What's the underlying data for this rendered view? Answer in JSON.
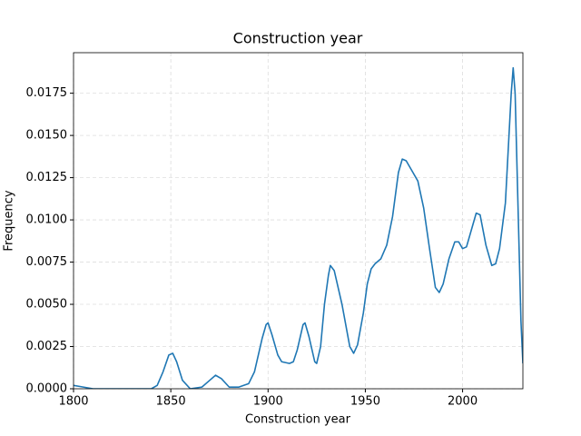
{
  "chart_data": {
    "type": "line",
    "title": "Construction year",
    "x_label": "Construction year",
    "y_label": "Frequency",
    "x": [
      1800,
      1805,
      1810,
      1840,
      1843,
      1846,
      1849,
      1851,
      1853,
      1856,
      1860,
      1866,
      1870,
      1873,
      1876,
      1880,
      1885,
      1890,
      1893,
      1897,
      1899,
      1900,
      1902,
      1905,
      1907,
      1911,
      1913,
      1915,
      1918,
      1919,
      1921,
      1924,
      1925,
      1927,
      1929,
      1931,
      1932,
      1934,
      1938,
      1942,
      1944,
      1946,
      1949,
      1951,
      1953,
      1955,
      1958,
      1961,
      1964,
      1967,
      1969,
      1971,
      1974,
      1977,
      1980,
      1983,
      1986,
      1988,
      1990,
      1993,
      1996,
      1998,
      2000,
      2002,
      2005,
      2007,
      2009,
      2012,
      2015,
      2017,
      2019,
      2022,
      2025,
      2026,
      2027,
      2028,
      2029,
      2030,
      2031
    ],
    "series": [
      {
        "name": "Construction year",
        "color": "#1f77b4",
        "values": [
          0.0002,
          0.0001,
          0,
          0,
          0.0002,
          0.001,
          0.002,
          0.0021,
          0.0016,
          0.0005,
          0,
          0.0001,
          0.0005,
          0.0008,
          0.0006,
          0.0001,
          0.0001,
          0.0003,
          0.001,
          0.003,
          0.0038,
          0.0039,
          0.0032,
          0.002,
          0.0016,
          0.0015,
          0.0016,
          0.0023,
          0.0038,
          0.0039,
          0.0031,
          0.0016,
          0.0015,
          0.0025,
          0.005,
          0.0067,
          0.0073,
          0.007,
          0.005,
          0.0025,
          0.0021,
          0.0026,
          0.0045,
          0.0062,
          0.0071,
          0.0074,
          0.0077,
          0.0085,
          0.0102,
          0.0128,
          0.0136,
          0.0135,
          0.0129,
          0.0123,
          0.0107,
          0.0083,
          0.006,
          0.0057,
          0.0062,
          0.0077,
          0.0087,
          0.0087,
          0.0083,
          0.0084,
          0.0096,
          0.0104,
          0.0103,
          0.0085,
          0.0073,
          0.0074,
          0.0083,
          0.011,
          0.0175,
          0.019,
          0.0175,
          0.013,
          0.0085,
          0.004,
          0.0015
        ]
      }
    ],
    "xlim": [
      1800,
      2031
    ],
    "ylim": [
      0,
      0.0199
    ],
    "xticks": [
      1800,
      1850,
      1900,
      1950,
      2000
    ],
    "yticks": [
      {
        "value": 0,
        "label": "0.0000"
      },
      {
        "value": 0.0025,
        "label": "0.0025"
      },
      {
        "value": 0.005,
        "label": "0.0050"
      },
      {
        "value": 0.0075,
        "label": "0.0075"
      },
      {
        "value": 0.01,
        "label": "0.0100"
      },
      {
        "value": 0.0125,
        "label": "0.0125"
      },
      {
        "value": 0.015,
        "label": "0.0150"
      },
      {
        "value": 0.0175,
        "label": "0.0175"
      }
    ],
    "grid": true
  }
}
